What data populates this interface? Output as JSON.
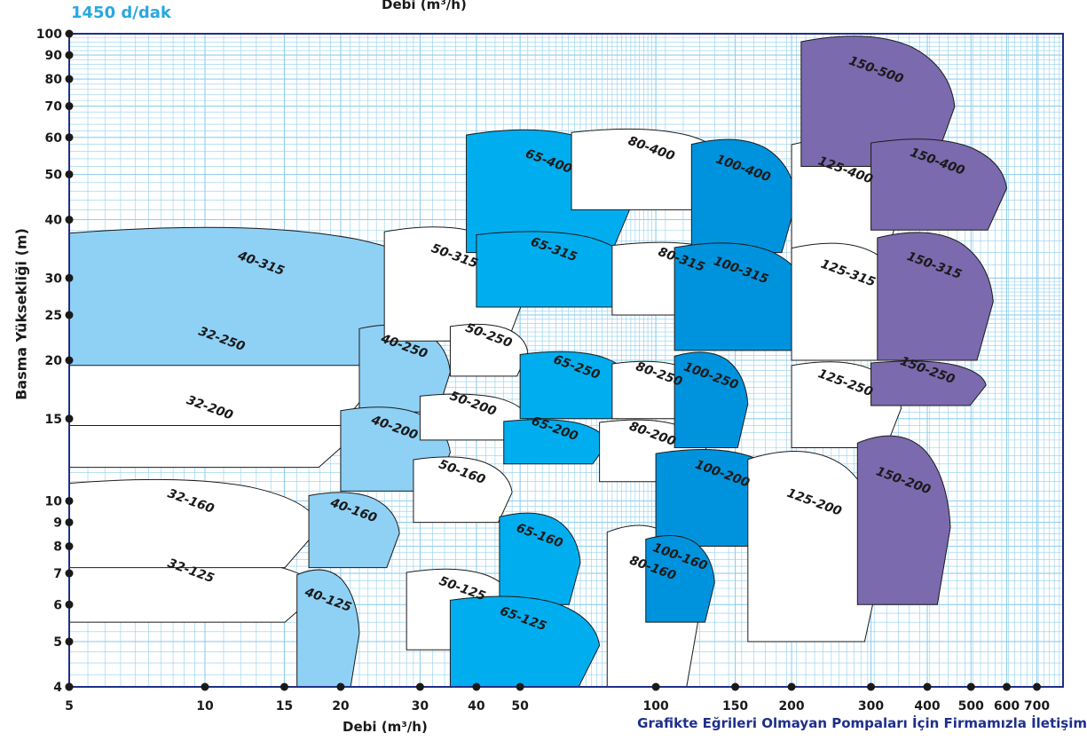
{
  "speed_label": "1450 d/dak",
  "footnote": "Grafikte Eğrileri Olmayan Pompaları İçin Firmamızla İletişim",
  "chart_data": {
    "type": "area",
    "title": "",
    "xlabel": "Debi (m³/h)",
    "ylabel": "Basma Yüksekliği (m)",
    "x_scale": "log",
    "y_scale": "log",
    "xlim": [
      5,
      800
    ],
    "ylim": [
      4,
      100
    ],
    "x_ticks": [
      5,
      10,
      15,
      20,
      30,
      40,
      50,
      100,
      150,
      200,
      300,
      400,
      500,
      600,
      700
    ],
    "y_ticks": [
      4,
      5,
      6,
      7,
      8,
      9,
      10,
      15,
      20,
      25,
      30,
      40,
      50,
      60,
      70,
      80,
      90,
      100
    ],
    "grid": true,
    "colors": {
      "light": "#8fd1f5",
      "medium": "#00aeef",
      "dark": "#0093dd",
      "purple": "#7b6aae",
      "white": "#ffffff",
      "grid": "#8fcfee",
      "axis": "#1f2f8a"
    },
    "series": [
      {
        "name": "32-125",
        "color": "white",
        "q": [
          5,
          18
        ],
        "h": [
          5.5,
          7.7
        ]
      },
      {
        "name": "32-160",
        "color": "white",
        "q": [
          5,
          18
        ],
        "h": [
          7.2,
          11.2
        ]
      },
      {
        "name": "32-200",
        "color": "white",
        "q": [
          5,
          22
        ],
        "h": [
          11.8,
          17.5
        ]
      },
      {
        "name": "32-250",
        "color": "white",
        "q": [
          5,
          25
        ],
        "h": [
          14.5,
          26
        ]
      },
      {
        "name": "40-315",
        "color": "light",
        "q": [
          5,
          38
        ],
        "h": [
          19.5,
          39
        ]
      },
      {
        "name": "40-250",
        "color": "light",
        "q": [
          22,
          35
        ],
        "h": [
          15.5,
          24
        ]
      },
      {
        "name": "40-200",
        "color": "light",
        "q": [
          20,
          35
        ],
        "h": [
          10.5,
          16
        ]
      },
      {
        "name": "40-160",
        "color": "light",
        "q": [
          17,
          27
        ],
        "h": [
          7.2,
          10.5
        ]
      },
      {
        "name": "40-125",
        "color": "light",
        "q": [
          16,
          22
        ],
        "h": [
          4,
          7.2
        ]
      },
      {
        "name": "50-315",
        "color": "white",
        "q": [
          25,
          52
        ],
        "h": [
          22,
          39
        ]
      },
      {
        "name": "50-250",
        "color": "white",
        "q": [
          35,
          52
        ],
        "h": [
          18.5,
          24
        ]
      },
      {
        "name": "50-200",
        "color": "white",
        "q": [
          30,
          52
        ],
        "h": [
          13.5,
          17
        ]
      },
      {
        "name": "50-160",
        "color": "white",
        "q": [
          29,
          48
        ],
        "h": [
          9,
          12.5
        ]
      },
      {
        "name": "50-125",
        "color": "white",
        "q": [
          28,
          50
        ],
        "h": [
          4.8,
          7.2
        ]
      },
      {
        "name": "65-400",
        "color": "medium",
        "q": [
          38,
          90
        ],
        "h": [
          34,
          63
        ]
      },
      {
        "name": "65-315",
        "color": "medium",
        "q": [
          40,
          90
        ],
        "h": [
          26,
          38
        ]
      },
      {
        "name": "65-250",
        "color": "medium",
        "q": [
          50,
          90
        ],
        "h": [
          15,
          21
        ]
      },
      {
        "name": "65-200",
        "color": "medium",
        "q": [
          46,
          78
        ],
        "h": [
          12,
          15
        ]
      },
      {
        "name": "65-160",
        "color": "medium",
        "q": [
          45,
          68
        ],
        "h": [
          6,
          9.5
        ]
      },
      {
        "name": "65-125",
        "color": "medium",
        "q": [
          35,
          75
        ],
        "h": [
          4,
          6.3
        ]
      },
      {
        "name": "80-400",
        "color": "white",
        "q": [
          65,
          150
        ],
        "h": [
          42,
          63
        ]
      },
      {
        "name": "80-315",
        "color": "white",
        "q": [
          80,
          165
        ],
        "h": [
          25,
          36
        ]
      },
      {
        "name": "80-250",
        "color": "white",
        "q": [
          80,
          130
        ],
        "h": [
          15,
          20
        ]
      },
      {
        "name": "80-200",
        "color": "white",
        "q": [
          75,
          130
        ],
        "h": [
          11,
          15
        ]
      },
      {
        "name": "80-160",
        "color": "white",
        "q": [
          78,
          125
        ],
        "h": [
          4,
          9
        ]
      },
      {
        "name": "100-400",
        "color": "dark",
        "q": [
          120,
          205
        ],
        "h": [
          34,
          60
        ]
      },
      {
        "name": "100-315",
        "color": "dark",
        "q": [
          110,
          220
        ],
        "h": [
          21,
          36
        ]
      },
      {
        "name": "100-250",
        "color": "dark",
        "q": [
          110,
          160
        ],
        "h": [
          13,
          21
        ]
      },
      {
        "name": "100-200",
        "color": "dark",
        "q": [
          100,
          200
        ],
        "h": [
          8,
          13
        ]
      },
      {
        "name": "100-160",
        "color": "dark",
        "q": [
          95,
          135
        ],
        "h": [
          5.5,
          8.5
        ]
      },
      {
        "name": "125-400",
        "color": "white",
        "q": [
          200,
          350
        ],
        "h": [
          33,
          60
        ]
      },
      {
        "name": "125-315",
        "color": "white",
        "q": [
          200,
          360
        ],
        "h": [
          20,
          36
        ]
      },
      {
        "name": "125-250",
        "color": "white",
        "q": [
          200,
          350
        ],
        "h": [
          13,
          20
        ]
      },
      {
        "name": "125-200",
        "color": "white",
        "q": [
          160,
          320
        ],
        "h": [
          5,
          13
        ]
      },
      {
        "name": "150-500",
        "color": "purple",
        "q": [
          210,
          460
        ],
        "h": [
          52,
          100
        ]
      },
      {
        "name": "150-400",
        "color": "purple",
        "q": [
          300,
          600
        ],
        "h": [
          38,
          60
        ]
      },
      {
        "name": "150-315",
        "color": "purple",
        "q": [
          310,
          560
        ],
        "h": [
          20,
          38
        ]
      },
      {
        "name": "150-250",
        "color": "purple",
        "q": [
          300,
          540
        ],
        "h": [
          16,
          20
        ]
      },
      {
        "name": "150-200",
        "color": "purple",
        "q": [
          280,
          450
        ],
        "h": [
          6,
          14
        ]
      }
    ]
  }
}
